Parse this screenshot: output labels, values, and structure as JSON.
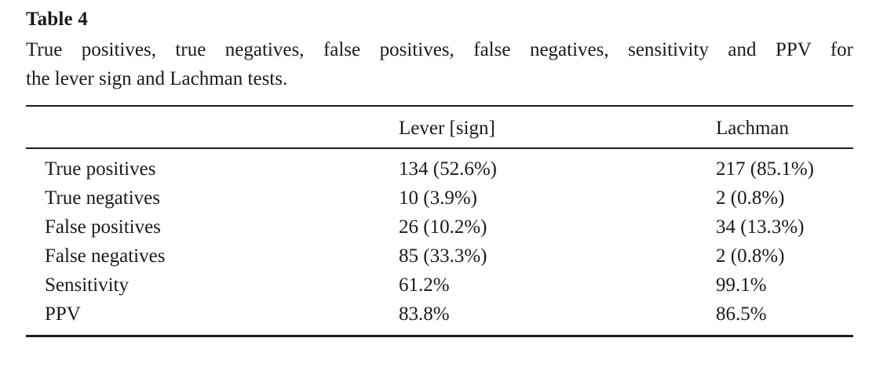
{
  "page": {
    "background": "#ffffff",
    "text_color": "#1a1a1a",
    "rule_color": "#1f1f1f"
  },
  "title": "Table 4",
  "caption_lines": [
    "True positives, true negatives, false positives, false negatives, sensitivity and PPV for",
    "the lever sign and Lachman tests."
  ],
  "table": {
    "columns": [
      "",
      "Lever [sign]",
      "Lachman"
    ],
    "rows": [
      {
        "label": "True positives",
        "lever": "134 (52.6%)",
        "lachman": "217 (85.1%)"
      },
      {
        "label": "True negatives",
        "lever": "10 (3.9%)",
        "lachman": "2 (0.8%)"
      },
      {
        "label": "False positives",
        "lever": "26 (10.2%)",
        "lachman": "34 (13.3%)"
      },
      {
        "label": "False negatives",
        "lever": "85 (33.3%)",
        "lachman": "2 (0.8%)"
      },
      {
        "label": "Sensitivity",
        "lever": "61.2%",
        "lachman": "99.1%"
      },
      {
        "label": "PPV",
        "lever": "83.8%",
        "lachman": "86.5%"
      }
    ]
  }
}
